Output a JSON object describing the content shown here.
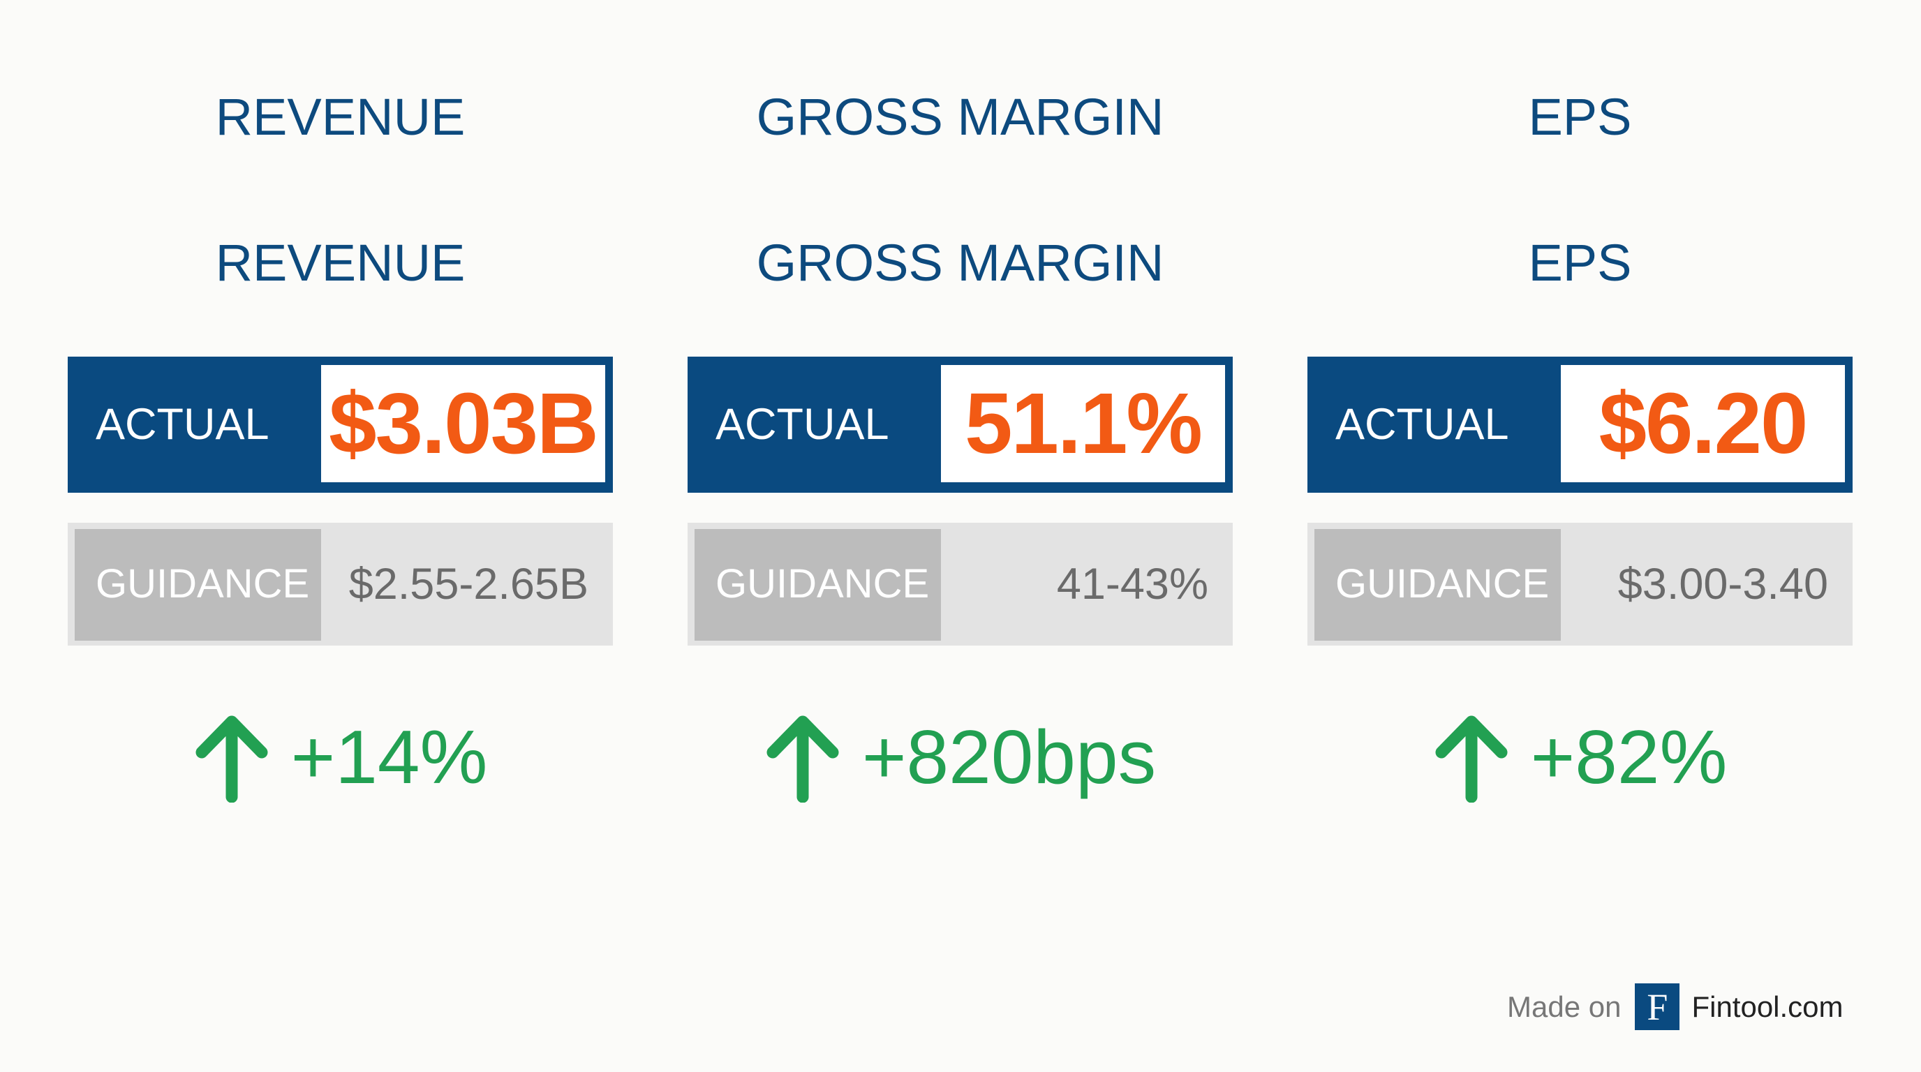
{
  "columns": [
    {
      "title": "REVENUE",
      "subtitle": "REVENUE",
      "actual_label": "ACTUAL",
      "actual_value": "$3.03B",
      "guidance_label": "GUIDANCE",
      "guidance_value": "$2.55-2.65B",
      "change": "+14%"
    },
    {
      "title": "GROSS MARGIN",
      "subtitle": "GROSS MARGIN",
      "actual_label": "ACTUAL",
      "actual_value": "51.1%",
      "guidance_label": "GUIDANCE",
      "guidance_value": "41-43%",
      "change": "+820bps"
    },
    {
      "title": "EPS",
      "subtitle": "EPS",
      "actual_label": "ACTUAL",
      "actual_value": "$6.20",
      "guidance_label": "GUIDANCE",
      "guidance_value": "$3.00-3.40",
      "change": "+82%"
    }
  ],
  "footer": {
    "made_on": "Made on",
    "logo": "F",
    "brand": "Fintool.com"
  }
}
